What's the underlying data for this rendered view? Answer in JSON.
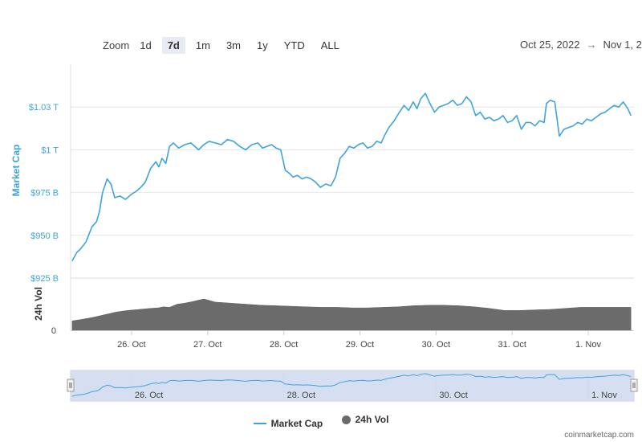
{
  "zoom": {
    "label": "Zoom",
    "buttons": [
      {
        "label": "1d",
        "active": false
      },
      {
        "label": "7d",
        "active": true
      },
      {
        "label": "1m",
        "active": false
      },
      {
        "label": "3m",
        "active": false
      },
      {
        "label": "1y",
        "active": false
      },
      {
        "label": "YTD",
        "active": false
      },
      {
        "label": "ALL",
        "active": false
      }
    ]
  },
  "date_range": {
    "from": "Oct 25, 2022",
    "separator": "→",
    "to": "Nov 1, 2"
  },
  "legend": {
    "market_cap": "Market Cap",
    "volume": "24h Vol"
  },
  "credits": "coinmarketcap.com",
  "colors": {
    "market_cap": "#3fa4dd",
    "volume": "#6b6b6b",
    "navigator_fill": "#d2dcf0"
  },
  "chart_data": {
    "type": "line",
    "ylabel": "Market Cap",
    "y_tick_labels": [
      "$925 B",
      "$950 B",
      "$975 B",
      "$1 T",
      "$1.03 T"
    ],
    "y_ticks": [
      925,
      950,
      975,
      1000,
      1025
    ],
    "ylim": [
      925,
      1050
    ],
    "x_tick_labels": [
      "26. Oct",
      "27. Oct",
      "28. Oct",
      "29. Oct",
      "30. Oct",
      "31. Oct",
      "1. Nov"
    ],
    "x_ticks": [
      1.0,
      2.0,
      3.0,
      4.0,
      5.0,
      6.0,
      7.0
    ],
    "xlim": [
      0.2,
      7.6
    ],
    "grid": true,
    "series": [
      {
        "name": "Market Cap",
        "x": [
          0.22,
          0.28,
          0.33,
          0.4,
          0.48,
          0.54,
          0.58,
          0.62,
          0.68,
          0.73,
          0.78,
          0.85,
          0.92,
          1.0,
          1.07,
          1.12,
          1.18,
          1.25,
          1.32,
          1.36,
          1.4,
          1.45,
          1.5,
          1.55,
          1.62,
          1.7,
          1.78,
          1.88,
          1.95,
          2.02,
          2.1,
          2.18,
          2.26,
          2.34,
          2.42,
          2.5,
          2.58,
          2.66,
          2.72,
          2.78,
          2.84,
          2.9,
          2.96,
          3.02,
          3.08,
          3.12,
          3.18,
          3.24,
          3.3,
          3.36,
          3.42,
          3.48,
          3.55,
          3.62,
          3.68,
          3.74,
          3.8,
          3.86,
          3.92,
          3.98,
          4.04,
          4.1,
          4.16,
          4.22,
          4.28,
          4.32,
          4.38,
          4.45,
          4.52,
          4.58,
          4.64,
          4.7,
          4.75,
          4.8,
          4.86,
          4.92,
          4.98,
          5.04,
          5.1,
          5.16,
          5.22,
          5.28,
          5.34,
          5.4,
          5.46,
          5.52,
          5.58,
          5.64,
          5.7,
          5.76,
          5.82,
          5.88,
          5.94,
          6.0,
          6.06,
          6.12,
          6.18,
          6.24,
          6.3,
          6.36,
          6.42,
          6.45,
          6.5,
          6.56,
          6.62,
          6.68,
          6.74,
          6.8,
          6.86,
          6.92,
          6.98,
          7.04,
          7.1,
          7.16,
          7.22,
          7.28,
          7.34,
          7.4,
          7.46,
          7.52,
          7.56
        ],
        "values": [
          935,
          940,
          942,
          946,
          955,
          958,
          964,
          975,
          983,
          980,
          972,
          973,
          971,
          974,
          976,
          978,
          981,
          989,
          993,
          990,
          995,
          992,
          1002,
          1004,
          1001,
          1003,
          1004,
          1000,
          1003,
          1005,
          1004,
          1003,
          1006,
          1005,
          1002,
          1000,
          1003,
          1004,
          1001,
          1002,
          1003,
          1001,
          1000,
          988,
          986,
          984,
          985,
          983,
          984,
          983,
          981,
          978,
          980,
          979,
          984,
          995,
          998,
          1002,
          1001,
          1003,
          1004,
          1001,
          1002,
          1005,
          1004,
          1008,
          1013,
          1017,
          1022,
          1026,
          1023,
          1028,
          1024,
          1030,
          1033,
          1027,
          1022,
          1025,
          1026,
          1027,
          1029,
          1026,
          1027,
          1031,
          1028,
          1020,
          1022,
          1018,
          1019,
          1017,
          1018,
          1020,
          1016,
          1017,
          1020,
          1012,
          1016,
          1016,
          1014,
          1017,
          1016,
          1027,
          1029,
          1028,
          1008,
          1012,
          1013,
          1014,
          1016,
          1015,
          1018,
          1017,
          1019,
          1021,
          1022,
          1024,
          1026,
          1025,
          1028,
          1024,
          1020
        ]
      },
      {
        "name": "24h Vol",
        "x": [
          0.22,
          0.35,
          0.5,
          0.65,
          0.8,
          0.95,
          1.1,
          1.25,
          1.35,
          1.42,
          1.5,
          1.6,
          1.7,
          1.8,
          1.95,
          2.1,
          2.3,
          2.5,
          2.7,
          2.9,
          3.1,
          3.3,
          3.5,
          3.7,
          3.9,
          4.1,
          4.3,
          4.5,
          4.7,
          4.9,
          5.1,
          5.3,
          5.5,
          5.7,
          5.9,
          6.1,
          6.3,
          6.5,
          6.7,
          6.9,
          7.1,
          7.3,
          7.56
        ],
        "values": [
          0.18,
          0.21,
          0.25,
          0.3,
          0.35,
          0.38,
          0.4,
          0.42,
          0.43,
          0.45,
          0.44,
          0.5,
          0.52,
          0.55,
          0.6,
          0.54,
          0.52,
          0.5,
          0.48,
          0.47,
          0.46,
          0.45,
          0.44,
          0.44,
          0.43,
          0.43,
          0.44,
          0.45,
          0.47,
          0.48,
          0.48,
          0.47,
          0.45,
          0.42,
          0.38,
          0.38,
          0.39,
          0.4,
          0.42,
          0.44,
          0.44,
          0.44,
          0.44
        ]
      }
    ]
  }
}
